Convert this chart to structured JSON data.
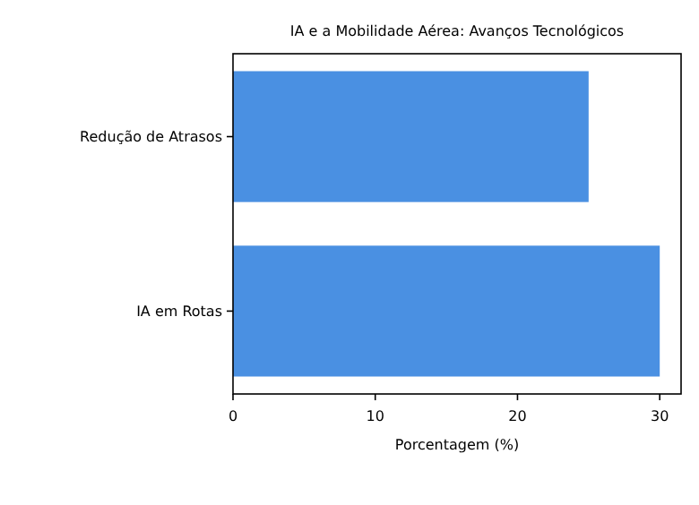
{
  "chart_data": {
    "type": "bar",
    "orientation": "horizontal",
    "title": "IA e a Mobilidade Aérea: Avanços Tecnológicos",
    "xlabel": "Porcentagem (%)",
    "categories": [
      "Redução de Atrasos",
      "IA em Rotas"
    ],
    "values": [
      25,
      30
    ],
    "color": "#4a90e2",
    "xlim": [
      0,
      31.5
    ],
    "xticks": [
      0,
      10,
      20,
      30
    ],
    "grid": false
  }
}
